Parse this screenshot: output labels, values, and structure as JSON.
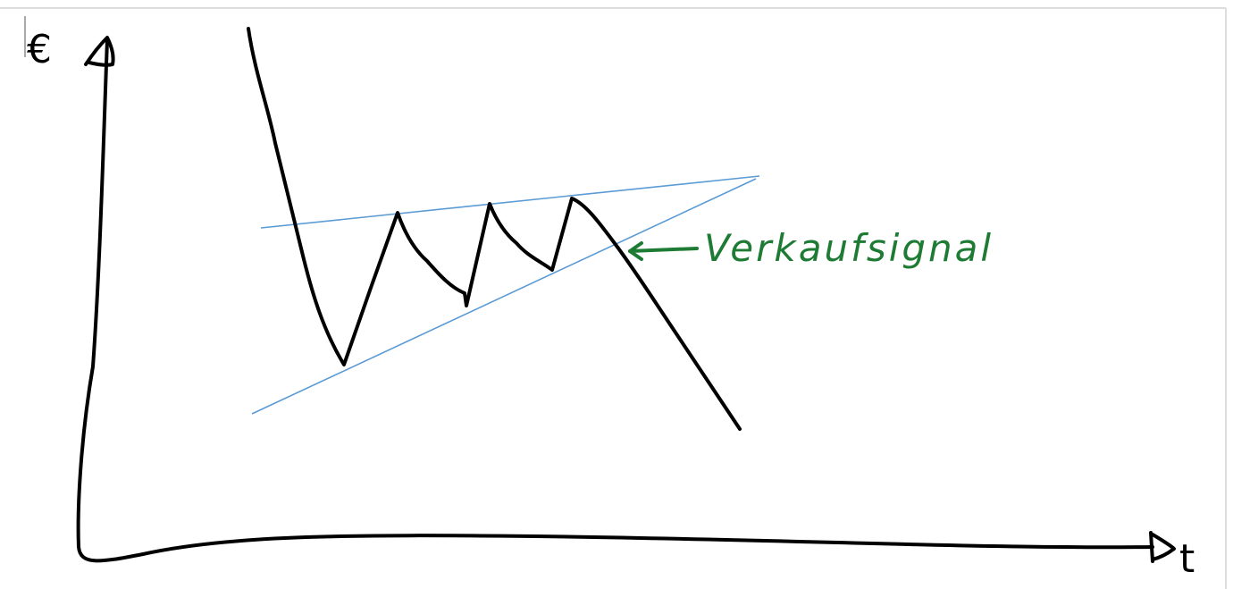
{
  "axes": {
    "y_label": "€",
    "x_label": "t"
  },
  "annotation": "Verkaufsignal"
}
